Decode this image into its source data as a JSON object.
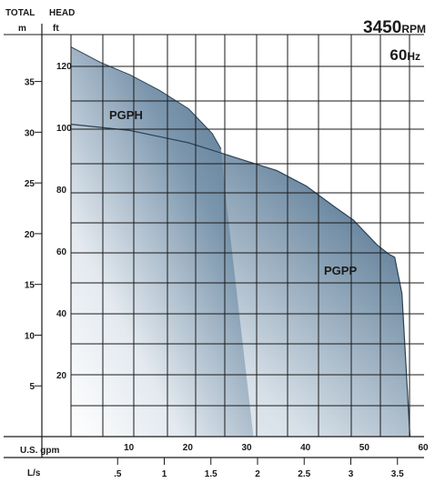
{
  "header": {
    "total": "TOTAL",
    "head": "HEAD",
    "unit_m": "m",
    "unit_ft": "ft",
    "rpm_value": "3450",
    "rpm_unit": "RPM",
    "hz_value": "60",
    "hz_unit": "Hz"
  },
  "axes": {
    "gpm_label": "U.S. gpm",
    "ls_label": "L/s"
  },
  "chart_data": {
    "type": "area",
    "x_unit": "U.S. gpm",
    "y_unit": "ft",
    "xlim": [
      0,
      60
    ],
    "ylim": [
      0,
      130
    ],
    "grid": true,
    "ft_ticks": [
      "20",
      "40",
      "60",
      "80",
      "100",
      "120"
    ],
    "ft_tick_values": [
      20,
      40,
      60,
      80,
      100,
      120
    ],
    "m_ticks": [
      "5",
      "10",
      "15",
      "20",
      "25",
      "30",
      "35"
    ],
    "m_tick_values": [
      5,
      10,
      15,
      20,
      25,
      30,
      35
    ],
    "gpm_ticks": [
      "10",
      "20",
      "30",
      "40",
      "50",
      "60"
    ],
    "gpm_tick_values": [
      10,
      20,
      30,
      40,
      50,
      60
    ],
    "ls_ticks": [
      ".5",
      "1",
      "1.5",
      "2",
      "2.5",
      "3",
      "3.5"
    ],
    "ls_tick_values": [
      0.5,
      1,
      1.5,
      2,
      2.5,
      3,
      3.5
    ],
    "series": [
      {
        "name": "PGPH",
        "color": "#5b7a94",
        "x": [
          0,
          5,
          10,
          15,
          20,
          24,
          25.5
        ],
        "y": [
          126,
          121,
          117,
          112,
          106,
          98,
          93
        ]
      },
      {
        "name": "PGPP",
        "color": "#4f6f8a",
        "x": [
          0,
          5,
          10,
          15,
          20,
          25,
          30,
          35,
          40,
          45,
          48,
          50,
          52,
          54,
          55
        ],
        "y": [
          101,
          100,
          99,
          97,
          95,
          92,
          89,
          86,
          81,
          74,
          70,
          66,
          62,
          59,
          58
        ]
      }
    ]
  }
}
